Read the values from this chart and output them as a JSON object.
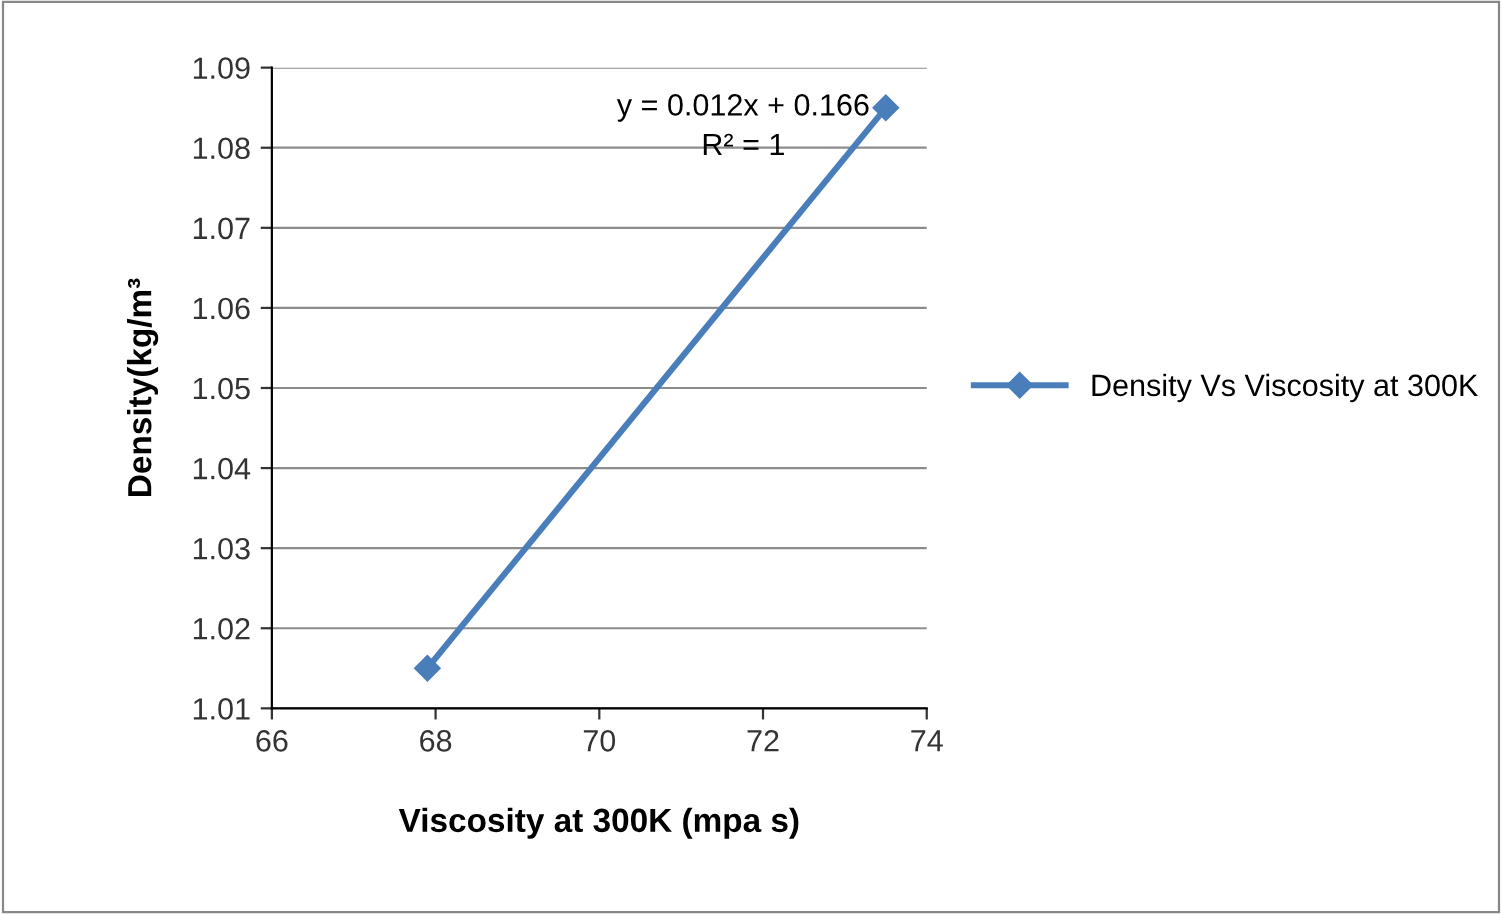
{
  "chart_data": {
    "type": "line",
    "xlabel": "Viscosity at 300K (mpa s)",
    "ylabel": "Density(kg/m³",
    "series": [
      {
        "name": "Density Vs Viscosity at 300K",
        "color": "#4a7ebb",
        "x": [
          67.9,
          73.5
        ],
        "values": [
          1.015,
          1.085
        ]
      }
    ],
    "xlim": [
      66,
      74
    ],
    "xticks": [
      66,
      68,
      70,
      72,
      74
    ],
    "ylim": [
      1.01,
      1.09
    ],
    "yticks": [
      1.01,
      1.02,
      1.03,
      1.04,
      1.05,
      1.06,
      1.07,
      1.08,
      1.09
    ],
    "grid": "y",
    "legend": "right",
    "marker": "diamond",
    "line_style": "solid",
    "annotations": [
      "y = 0.012x + 0.166\nR² = 1"
    ]
  }
}
